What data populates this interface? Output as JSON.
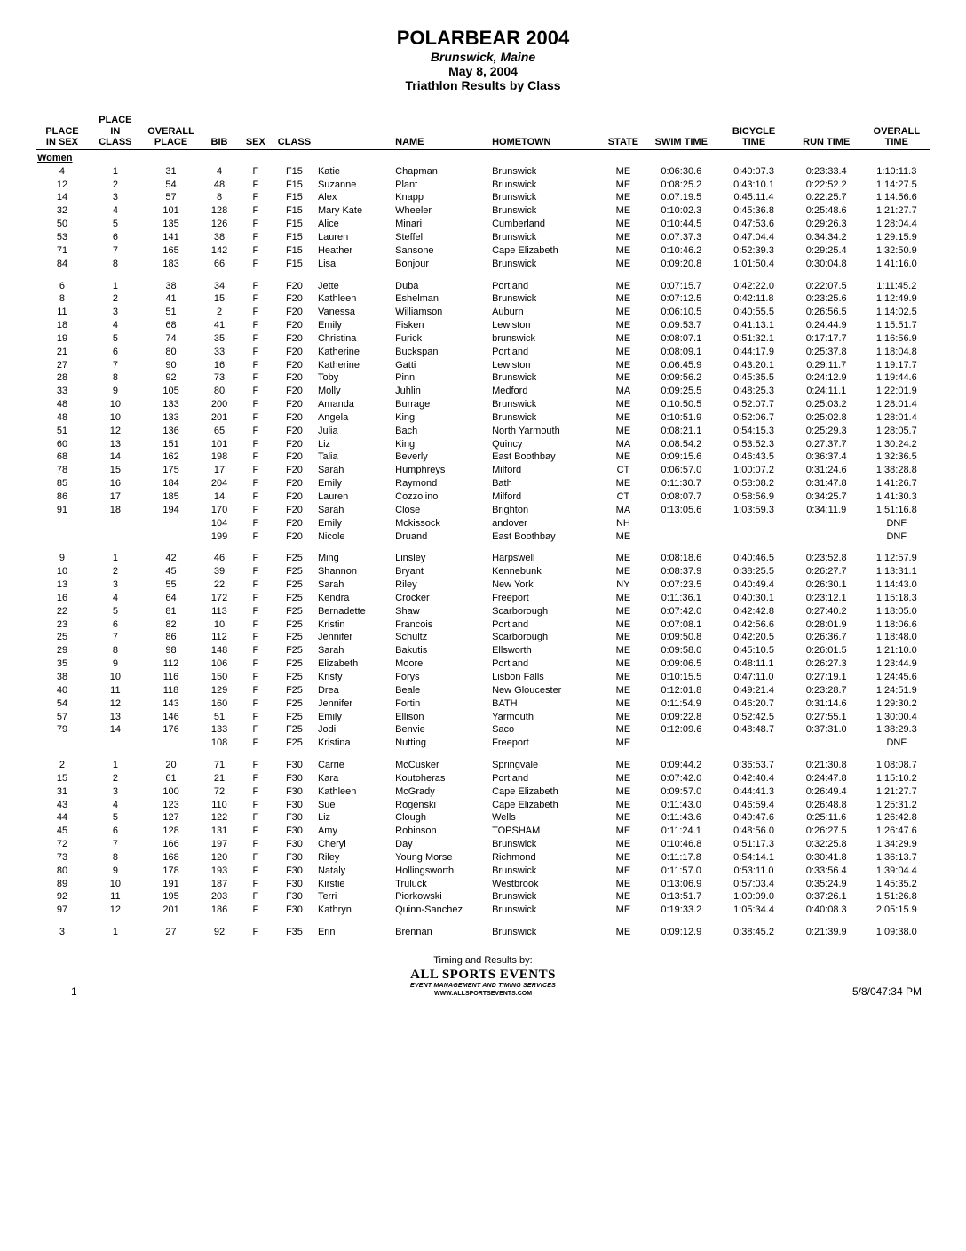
{
  "header": {
    "title": "POLARBEAR 2004",
    "location": "Brunswick, Maine",
    "date": "May 8, 2004",
    "caption": "Triathlon Results by Class"
  },
  "columns": [
    {
      "key": "place_sex",
      "label": "PLACE\nIN SEX",
      "align": "c"
    },
    {
      "key": "place_class",
      "label": "PLACE\nIN\nCLASS",
      "align": "c"
    },
    {
      "key": "overall_place",
      "label": "OVERALL\nPLACE",
      "align": "c"
    },
    {
      "key": "bib",
      "label": "BIB",
      "align": "c"
    },
    {
      "key": "sex",
      "label": "SEX",
      "align": "c"
    },
    {
      "key": "class",
      "label": "CLASS",
      "align": "c"
    },
    {
      "key": "first",
      "label": "",
      "align": "l"
    },
    {
      "key": "last",
      "label": "NAME",
      "align": "l"
    },
    {
      "key": "hometown",
      "label": "HOMETOWN",
      "align": "l"
    },
    {
      "key": "state",
      "label": "STATE",
      "align": "c"
    },
    {
      "key": "swim",
      "label": "SWIM TIME",
      "align": "c"
    },
    {
      "key": "bike",
      "label": "BICYCLE\nTIME",
      "align": "c"
    },
    {
      "key": "run",
      "label": "RUN TIME",
      "align": "c"
    },
    {
      "key": "overall",
      "label": "OVERALL\nTIME",
      "align": "c"
    }
  ],
  "section_label": "Women",
  "groups": [
    {
      "rows": [
        [
          "4",
          "1",
          "31",
          "4",
          "F",
          "F15",
          "Katie",
          "Chapman",
          "Brunswick",
          "ME",
          "0:06:30.6",
          "0:40:07.3",
          "0:23:33.4",
          "1:10:11.3"
        ],
        [
          "12",
          "2",
          "54",
          "48",
          "F",
          "F15",
          "Suzanne",
          "Plant",
          "Brunswick",
          "ME",
          "0:08:25.2",
          "0:43:10.1",
          "0:22:52.2",
          "1:14:27.5"
        ],
        [
          "14",
          "3",
          "57",
          "8",
          "F",
          "F15",
          "Alex",
          "Knapp",
          "Brunswick",
          "ME",
          "0:07:19.5",
          "0:45:11.4",
          "0:22:25.7",
          "1:14:56.6"
        ],
        [
          "32",
          "4",
          "101",
          "128",
          "F",
          "F15",
          "Mary Kate",
          "Wheeler",
          "Brunswick",
          "ME",
          "0:10:02.3",
          "0:45:36.8",
          "0:25:48.6",
          "1:21:27.7"
        ],
        [
          "50",
          "5",
          "135",
          "126",
          "F",
          "F15",
          "Alice",
          "Minari",
          "Cumberland",
          "ME",
          "0:10:44.5",
          "0:47:53.6",
          "0:29:26.3",
          "1:28:04.4"
        ],
        [
          "53",
          "6",
          "141",
          "38",
          "F",
          "F15",
          "Lauren",
          "Steffel",
          "Brunswick",
          "ME",
          "0:07:37.3",
          "0:47:04.4",
          "0:34:34.2",
          "1:29:15.9"
        ],
        [
          "71",
          "7",
          "165",
          "142",
          "F",
          "F15",
          "Heather",
          "Sansone",
          "Cape Elizabeth",
          "ME",
          "0:10:46.2",
          "0:52:39.3",
          "0:29:25.4",
          "1:32:50.9"
        ],
        [
          "84",
          "8",
          "183",
          "66",
          "F",
          "F15",
          "Lisa",
          "Bonjour",
          "Brunswick",
          "ME",
          "0:09:20.8",
          "1:01:50.4",
          "0:30:04.8",
          "1:41:16.0"
        ]
      ]
    },
    {
      "rows": [
        [
          "6",
          "1",
          "38",
          "34",
          "F",
          "F20",
          "Jette",
          "Duba",
          "Portland",
          "ME",
          "0:07:15.7",
          "0:42:22.0",
          "0:22:07.5",
          "1:11:45.2"
        ],
        [
          "8",
          "2",
          "41",
          "15",
          "F",
          "F20",
          "Kathleen",
          "Eshelman",
          "Brunswick",
          "ME",
          "0:07:12.5",
          "0:42:11.8",
          "0:23:25.6",
          "1:12:49.9"
        ],
        [
          "11",
          "3",
          "51",
          "2",
          "F",
          "F20",
          "Vanessa",
          "Williamson",
          "Auburn",
          "ME",
          "0:06:10.5",
          "0:40:55.5",
          "0:26:56.5",
          "1:14:02.5"
        ],
        [
          "18",
          "4",
          "68",
          "41",
          "F",
          "F20",
          "Emily",
          "Fisken",
          "Lewiston",
          "ME",
          "0:09:53.7",
          "0:41:13.1",
          "0:24:44.9",
          "1:15:51.7"
        ],
        [
          "19",
          "5",
          "74",
          "35",
          "F",
          "F20",
          "Christina",
          "Furick",
          "brunswick",
          "ME",
          "0:08:07.1",
          "0:51:32.1",
          "0:17:17.7",
          "1:16:56.9"
        ],
        [
          "21",
          "6",
          "80",
          "33",
          "F",
          "F20",
          "Katherine",
          "Buckspan",
          "Portland",
          "ME",
          "0:08:09.1",
          "0:44:17.9",
          "0:25:37.8",
          "1:18:04.8"
        ],
        [
          "27",
          "7",
          "90",
          "16",
          "F",
          "F20",
          "Katherine",
          "Gatti",
          "Lewiston",
          "ME",
          "0:06:45.9",
          "0:43:20.1",
          "0:29:11.7",
          "1:19:17.7"
        ],
        [
          "28",
          "8",
          "92",
          "73",
          "F",
          "F20",
          "Toby",
          "Pinn",
          "Brunswick",
          "ME",
          "0:09:56.2",
          "0:45:35.5",
          "0:24:12.9",
          "1:19:44.6"
        ],
        [
          "33",
          "9",
          "105",
          "80",
          "F",
          "F20",
          "Molly",
          "Juhlin",
          "Medford",
          "MA",
          "0:09:25.5",
          "0:48:25.3",
          "0:24:11.1",
          "1:22:01.9"
        ],
        [
          "48",
          "10",
          "133",
          "200",
          "F",
          "F20",
          "Amanda",
          "Burrage",
          "Brunswick",
          "ME",
          "0:10:50.5",
          "0:52:07.7",
          "0:25:03.2",
          "1:28:01.4"
        ],
        [
          "48",
          "10",
          "133",
          "201",
          "F",
          "F20",
          "Angela",
          "King",
          "Brunswick",
          "ME",
          "0:10:51.9",
          "0:52:06.7",
          "0:25:02.8",
          "1:28:01.4"
        ],
        [
          "51",
          "12",
          "136",
          "65",
          "F",
          "F20",
          "Julia",
          "Bach",
          "North Yarmouth",
          "ME",
          "0:08:21.1",
          "0:54:15.3",
          "0:25:29.3",
          "1:28:05.7"
        ],
        [
          "60",
          "13",
          "151",
          "101",
          "F",
          "F20",
          "Liz",
          "King",
          "Quincy",
          "MA",
          "0:08:54.2",
          "0:53:52.3",
          "0:27:37.7",
          "1:30:24.2"
        ],
        [
          "68",
          "14",
          "162",
          "198",
          "F",
          "F20",
          "Talia",
          "Beverly",
          "East Boothbay",
          "ME",
          "0:09:15.6",
          "0:46:43.5",
          "0:36:37.4",
          "1:32:36.5"
        ],
        [
          "78",
          "15",
          "175",
          "17",
          "F",
          "F20",
          "Sarah",
          "Humphreys",
          "Milford",
          "CT",
          "0:06:57.0",
          "1:00:07.2",
          "0:31:24.6",
          "1:38:28.8"
        ],
        [
          "85",
          "16",
          "184",
          "204",
          "F",
          "F20",
          "Emily",
          "Raymond",
          "Bath",
          "ME",
          "0:11:30.7",
          "0:58:08.2",
          "0:31:47.8",
          "1:41:26.7"
        ],
        [
          "86",
          "17",
          "185",
          "14",
          "F",
          "F20",
          "Lauren",
          "Cozzolino",
          "Milford",
          "CT",
          "0:08:07.7",
          "0:58:56.9",
          "0:34:25.7",
          "1:41:30.3"
        ],
        [
          "91",
          "18",
          "194",
          "170",
          "F",
          "F20",
          "Sarah",
          "Close",
          "Brighton",
          "MA",
          "0:13:05.6",
          "1:03:59.3",
          "0:34:11.9",
          "1:51:16.8"
        ],
        [
          "",
          "",
          "",
          "104",
          "F",
          "F20",
          "Emily",
          "Mckissock",
          "andover",
          "NH",
          "",
          "",
          "",
          "DNF"
        ],
        [
          "",
          "",
          "",
          "199",
          "F",
          "F20",
          "Nicole",
          "Druand",
          "East Boothbay",
          "ME",
          "",
          "",
          "",
          "DNF"
        ]
      ]
    },
    {
      "rows": [
        [
          "9",
          "1",
          "42",
          "46",
          "F",
          "F25",
          "Ming",
          "Linsley",
          "Harpswell",
          "ME",
          "0:08:18.6",
          "0:40:46.5",
          "0:23:52.8",
          "1:12:57.9"
        ],
        [
          "10",
          "2",
          "45",
          "39",
          "F",
          "F25",
          "Shannon",
          "Bryant",
          "Kennebunk",
          "ME",
          "0:08:37.9",
          "0:38:25.5",
          "0:26:27.7",
          "1:13:31.1"
        ],
        [
          "13",
          "3",
          "55",
          "22",
          "F",
          "F25",
          "Sarah",
          "Riley",
          "New York",
          "NY",
          "0:07:23.5",
          "0:40:49.4",
          "0:26:30.1",
          "1:14:43.0"
        ],
        [
          "16",
          "4",
          "64",
          "172",
          "F",
          "F25",
          "Kendra",
          "Crocker",
          "Freeport",
          "ME",
          "0:11:36.1",
          "0:40:30.1",
          "0:23:12.1",
          "1:15:18.3"
        ],
        [
          "22",
          "5",
          "81",
          "113",
          "F",
          "F25",
          "Bernadette",
          "Shaw",
          "Scarborough",
          "ME",
          "0:07:42.0",
          "0:42:42.8",
          "0:27:40.2",
          "1:18:05.0"
        ],
        [
          "23",
          "6",
          "82",
          "10",
          "F",
          "F25",
          "Kristin",
          "Francois",
          "Portland",
          "ME",
          "0:07:08.1",
          "0:42:56.6",
          "0:28:01.9",
          "1:18:06.6"
        ],
        [
          "25",
          "7",
          "86",
          "112",
          "F",
          "F25",
          "Jennifer",
          "Schultz",
          "Scarborough",
          "ME",
          "0:09:50.8",
          "0:42:20.5",
          "0:26:36.7",
          "1:18:48.0"
        ],
        [
          "29",
          "8",
          "98",
          "148",
          "F",
          "F25",
          "Sarah",
          "Bakutis",
          "Ellsworth",
          "ME",
          "0:09:58.0",
          "0:45:10.5",
          "0:26:01.5",
          "1:21:10.0"
        ],
        [
          "35",
          "9",
          "112",
          "106",
          "F",
          "F25",
          "Elizabeth",
          "Moore",
          "Portland",
          "ME",
          "0:09:06.5",
          "0:48:11.1",
          "0:26:27.3",
          "1:23:44.9"
        ],
        [
          "38",
          "10",
          "116",
          "150",
          "F",
          "F25",
          "Kristy",
          "Forys",
          "Lisbon Falls",
          "ME",
          "0:10:15.5",
          "0:47:11.0",
          "0:27:19.1",
          "1:24:45.6"
        ],
        [
          "40",
          "11",
          "118",
          "129",
          "F",
          "F25",
          "Drea",
          "Beale",
          "New Gloucester",
          "ME",
          "0:12:01.8",
          "0:49:21.4",
          "0:23:28.7",
          "1:24:51.9"
        ],
        [
          "54",
          "12",
          "143",
          "160",
          "F",
          "F25",
          "Jennifer",
          "Fortin",
          "BATH",
          "ME",
          "0:11:54.9",
          "0:46:20.7",
          "0:31:14.6",
          "1:29:30.2"
        ],
        [
          "57",
          "13",
          "146",
          "51",
          "F",
          "F25",
          "Emily",
          "Ellison",
          "Yarmouth",
          "ME",
          "0:09:22.8",
          "0:52:42.5",
          "0:27:55.1",
          "1:30:00.4"
        ],
        [
          "79",
          "14",
          "176",
          "133",
          "F",
          "F25",
          "Jodi",
          "Benvie",
          "Saco",
          "ME",
          "0:12:09.6",
          "0:48:48.7",
          "0:37:31.0",
          "1:38:29.3"
        ],
        [
          "",
          "",
          "",
          "108",
          "F",
          "F25",
          "Kristina",
          "Nutting",
          "Freeport",
          "ME",
          "",
          "",
          "",
          "DNF"
        ]
      ]
    },
    {
      "rows": [
        [
          "2",
          "1",
          "20",
          "71",
          "F",
          "F30",
          "Carrie",
          "McCusker",
          "Springvale",
          "ME",
          "0:09:44.2",
          "0:36:53.7",
          "0:21:30.8",
          "1:08:08.7"
        ],
        [
          "15",
          "2",
          "61",
          "21",
          "F",
          "F30",
          "Kara",
          "Koutoheras",
          "Portland",
          "ME",
          "0:07:42.0",
          "0:42:40.4",
          "0:24:47.8",
          "1:15:10.2"
        ],
        [
          "31",
          "3",
          "100",
          "72",
          "F",
          "F30",
          "Kathleen",
          "McGrady",
          "Cape Elizabeth",
          "ME",
          "0:09:57.0",
          "0:44:41.3",
          "0:26:49.4",
          "1:21:27.7"
        ],
        [
          "43",
          "4",
          "123",
          "110",
          "F",
          "F30",
          "Sue",
          "Rogenski",
          "Cape Elizabeth",
          "ME",
          "0:11:43.0",
          "0:46:59.4",
          "0:26:48.8",
          "1:25:31.2"
        ],
        [
          "44",
          "5",
          "127",
          "122",
          "F",
          "F30",
          "Liz",
          "Clough",
          "Wells",
          "ME",
          "0:11:43.6",
          "0:49:47.6",
          "0:25:11.6",
          "1:26:42.8"
        ],
        [
          "45",
          "6",
          "128",
          "131",
          "F",
          "F30",
          "Amy",
          "Robinson",
          "TOPSHAM",
          "ME",
          "0:11:24.1",
          "0:48:56.0",
          "0:26:27.5",
          "1:26:47.6"
        ],
        [
          "72",
          "7",
          "166",
          "197",
          "F",
          "F30",
          "Cheryl",
          "Day",
          "Brunswick",
          "ME",
          "0:10:46.8",
          "0:51:17.3",
          "0:32:25.8",
          "1:34:29.9"
        ],
        [
          "73",
          "8",
          "168",
          "120",
          "F",
          "F30",
          "Riley",
          "Young Morse",
          "Richmond",
          "ME",
          "0:11:17.8",
          "0:54:14.1",
          "0:30:41.8",
          "1:36:13.7"
        ],
        [
          "80",
          "9",
          "178",
          "193",
          "F",
          "F30",
          "Nataly",
          "Hollingsworth",
          "Brunswick",
          "ME",
          "0:11:57.0",
          "0:53:11.0",
          "0:33:56.4",
          "1:39:04.4"
        ],
        [
          "89",
          "10",
          "191",
          "187",
          "F",
          "F30",
          "Kirstie",
          "Truluck",
          "Westbrook",
          "ME",
          "0:13:06.9",
          "0:57:03.4",
          "0:35:24.9",
          "1:45:35.2"
        ],
        [
          "92",
          "11",
          "195",
          "203",
          "F",
          "F30",
          "Terri",
          "Piorkowski",
          "Brunswick",
          "ME",
          "0:13:51.7",
          "1:00:09.0",
          "0:37:26.1",
          "1:51:26.8"
        ],
        [
          "97",
          "12",
          "201",
          "186",
          "F",
          "F30",
          "Kathryn",
          "Quinn-Sanchez",
          "Brunswick",
          "ME",
          "0:19:33.2",
          "1:05:34.4",
          "0:40:08.3",
          "2:05:15.9"
        ]
      ]
    },
    {
      "rows": [
        [
          "3",
          "1",
          "27",
          "92",
          "F",
          "F35",
          "Erin",
          "Brennan",
          "Brunswick",
          "ME",
          "0:09:12.9",
          "0:38:45.2",
          "0:21:39.9",
          "1:09:38.0"
        ]
      ]
    }
  ],
  "footer": {
    "timing": "Timing and Results by:",
    "brand": "ALL SPORTS EVENTS",
    "tagline": "EVENT MANAGEMENT AND TIMING SERVICES",
    "url": "WWW.ALLSPORTSEVENTS.COM",
    "page": "1",
    "timestamp": "5/8/047:34 PM"
  }
}
